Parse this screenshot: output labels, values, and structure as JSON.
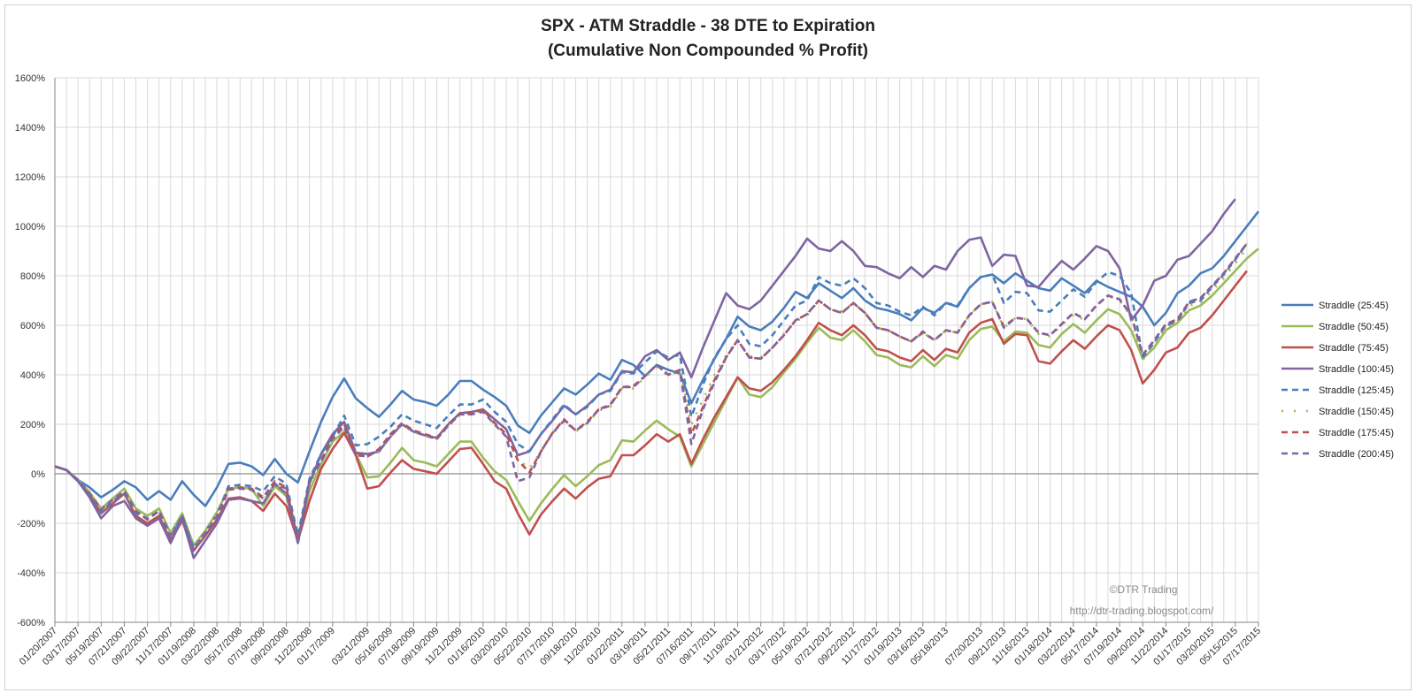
{
  "chart_data": {
    "type": "line",
    "title": "SPX - ATM Straddle - 38 DTE to Expiration",
    "subtitle": "(Cumulative Non Compounded % Profit)",
    "xlabel": "",
    "ylabel": "",
    "ylim": [
      -600,
      1600
    ],
    "y_ticks": [
      "1600%",
      "1400%",
      "1200%",
      "1000%",
      "800%",
      "600%",
      "400%",
      "200%",
      "0%",
      "-200%",
      "-400%",
      "-600%"
    ],
    "y_tick_values": [
      1600,
      1400,
      1200,
      1000,
      800,
      600,
      400,
      200,
      0,
      -200,
      -400,
      -600
    ],
    "x_tick_labels": [
      "01/20/2007",
      "03/17/2007",
      "05/19/2007",
      "07/21/2007",
      "09/22/2007",
      "11/17/2007",
      "01/19/2008",
      "03/22/2008",
      "05/17/2008",
      "07/19/2008",
      "09/20/2008",
      "11/22/2008",
      "01/17/2009",
      "03/21/2009",
      "05/16/2009",
      "07/18/2009",
      "09/19/2009",
      "11/21/2009",
      "01/16/2010",
      "03/20/2010",
      "05/22/2010",
      "07/17/2010",
      "09/18/2010",
      "11/20/2010",
      "01/22/2011",
      "03/19/2011",
      "05/21/2011",
      "07/16/2011",
      "09/17/2011",
      "11/19/2011",
      "01/21/2012",
      "03/17/2012",
      "05/19/2012",
      "07/21/2012",
      "09/22/2012",
      "11/17/2012",
      "01/19/2013",
      "03/16/2013",
      "05/18/2013",
      "07/20/2013",
      "09/21/2013",
      "11/16/2013",
      "01/18/2014",
      "03/22/2014",
      "05/17/2014",
      "07/19/2014",
      "09/20/2014",
      "11/22/2014",
      "01/17/2015",
      "03/20/2015",
      "05/15/2015",
      "07/17/2015"
    ],
    "grid": true,
    "legend_position": "right",
    "annotations": [
      "©DTR Trading",
      "http://dtr-trading.blogspot.com/"
    ],
    "series": [
      {
        "name": "Straddle  (25:45)",
        "color": "#4a7ebb",
        "dash": "solid",
        "values": [
          30,
          15,
          -25,
          -55,
          -95,
          -65,
          -30,
          -55,
          -105,
          -70,
          -105,
          -30,
          -85,
          -130,
          -55,
          40,
          45,
          30,
          -5,
          60,
          0,
          -35,
          90,
          210,
          310,
          385,
          305,
          265,
          230,
          280,
          335,
          300,
          290,
          275,
          320,
          375,
          375,
          340,
          310,
          275,
          195,
          165,
          235,
          290,
          345,
          320,
          360,
          405,
          380,
          460,
          440,
          395,
          440,
          420,
          405,
          285,
          380,
          465,
          545,
          635,
          595,
          580,
          615,
          670,
          735,
          710,
          770,
          740,
          710,
          750,
          700,
          670,
          660,
          645,
          620,
          670,
          650,
          690,
          675,
          750,
          795,
          805,
          770,
          810,
          780,
          750,
          740,
          790,
          760,
          730,
          780,
          755,
          735,
          715,
          675,
          600,
          650,
          730,
          760,
          810,
          830,
          880,
          940,
          1000,
          1060
        ]
      },
      {
        "name": "Straddle  (50:45)",
        "color": "#9bbb59",
        "dash": "solid",
        "values": [
          30,
          15,
          -25,
          -75,
          -140,
          -100,
          -60,
          -140,
          -170,
          -140,
          -240,
          -160,
          -290,
          -230,
          -155,
          -60,
          -55,
          -60,
          -130,
          -50,
          -90,
          -260,
          -70,
          40,
          130,
          170,
          80,
          -15,
          -10,
          45,
          105,
          55,
          45,
          30,
          80,
          130,
          130,
          65,
          10,
          -25,
          -110,
          -190,
          -120,
          -60,
          -5,
          -50,
          -10,
          35,
          55,
          135,
          130,
          175,
          215,
          180,
          150,
          30,
          120,
          210,
          300,
          390,
          320,
          310,
          350,
          410,
          465,
          530,
          590,
          550,
          540,
          580,
          535,
          480,
          470,
          440,
          430,
          475,
          435,
          480,
          465,
          540,
          585,
          595,
          535,
          575,
          570,
          520,
          510,
          565,
          605,
          570,
          620,
          665,
          645,
          580,
          465,
          510,
          580,
          610,
          660,
          680,
          720,
          770,
          820,
          870,
          910
        ]
      },
      {
        "name": "Straddle  (75:45)",
        "color": "#c0504d",
        "dash": "solid",
        "values": [
          30,
          15,
          -30,
          -85,
          -160,
          -120,
          -80,
          -170,
          -200,
          -170,
          -270,
          -190,
          -310,
          -250,
          -185,
          -100,
          -95,
          -110,
          -150,
          -80,
          -130,
          -270,
          -110,
          20,
          100,
          165,
          75,
          -60,
          -50,
          5,
          55,
          20,
          10,
          0,
          50,
          100,
          105,
          40,
          -30,
          -60,
          -160,
          -245,
          -165,
          -110,
          -60,
          -100,
          -55,
          -20,
          -10,
          75,
          75,
          115,
          160,
          130,
          160,
          40,
          140,
          230,
          310,
          390,
          345,
          335,
          370,
          420,
          475,
          540,
          610,
          580,
          560,
          600,
          560,
          505,
          495,
          470,
          455,
          500,
          460,
          505,
          490,
          570,
          610,
          625,
          525,
          565,
          560,
          455,
          445,
          495,
          540,
          505,
          555,
          600,
          580,
          500,
          365,
          420,
          490,
          510,
          570,
          590,
          640,
          700,
          760,
          820
        ]
      },
      {
        "name": "Straddle  (100:45)",
        "color": "#8064a2",
        "dash": "solid",
        "values": [
          30,
          15,
          -30,
          -95,
          -180,
          -130,
          -110,
          -180,
          -210,
          -180,
          -280,
          -180,
          -340,
          -270,
          -200,
          -105,
          -100,
          -110,
          -120,
          -40,
          -80,
          -280,
          -40,
          80,
          160,
          210,
          85,
          80,
          90,
          150,
          200,
          170,
          155,
          145,
          200,
          245,
          250,
          260,
          220,
          180,
          75,
          90,
          160,
          215,
          275,
          240,
          275,
          320,
          340,
          415,
          410,
          475,
          500,
          460,
          490,
          390,
          510,
          620,
          730,
          680,
          665,
          700,
          760,
          820,
          880,
          950,
          910,
          900,
          940,
          900,
          840,
          835,
          810,
          790,
          835,
          795,
          840,
          825,
          900,
          945,
          955,
          840,
          885,
          880,
          760,
          755,
          810,
          860,
          825,
          870,
          920,
          900,
          830,
          620,
          680,
          780,
          800,
          865,
          880,
          930,
          980,
          1050,
          1110
        ]
      },
      {
        "name": "Straddle  (125:45)",
        "color": "#4a7ebb",
        "dash": "dash",
        "values": [
          30,
          15,
          -30,
          -85,
          -155,
          -110,
          -80,
          -160,
          -180,
          -150,
          -250,
          -170,
          -300,
          -235,
          -165,
          -50,
          -45,
          -50,
          -70,
          -10,
          -40,
          -250,
          -20,
          80,
          150,
          235,
          115,
          120,
          150,
          190,
          240,
          215,
          200,
          185,
          235,
          280,
          280,
          300,
          250,
          210,
          120,
          90,
          160,
          220,
          280,
          240,
          270,
          320,
          335,
          410,
          405,
          450,
          495,
          470,
          480,
          230,
          360,
          470,
          545,
          600,
          525,
          515,
          560,
          620,
          680,
          700,
          795,
          770,
          760,
          790,
          750,
          690,
          680,
          655,
          640,
          675,
          640,
          690,
          680,
          750,
          795,
          805,
          690,
          735,
          730,
          660,
          655,
          700,
          745,
          715,
          775,
          815,
          800,
          730,
          470,
          530,
          600,
          615,
          690,
          700,
          755,
          805,
          865,
          930
        ]
      },
      {
        "name": "Straddle  (150:45)",
        "color": "#9bbb59",
        "dash": "dashdot",
        "values": [
          30,
          15,
          -25,
          -75,
          -140,
          -100,
          -65,
          -145,
          -175,
          -140,
          -240,
          -160,
          -290,
          -230,
          -160,
          -60,
          -55,
          -65,
          -110,
          -40,
          -75,
          -255,
          -50,
          50,
          140,
          200,
          85,
          70,
          95,
          150,
          200,
          170,
          155,
          140,
          190,
          240,
          240,
          260,
          200,
          160,
          60,
          20,
          90,
          160,
          215,
          170,
          205,
          255,
          270,
          345,
          345,
          390,
          430,
          395,
          420,
          200,
          300,
          400,
          480,
          540,
          475,
          470,
          510,
          565,
          615,
          640,
          700,
          665,
          655,
          690,
          650,
          590,
          580,
          555,
          535,
          570,
          540,
          580,
          570,
          640,
          685,
          695,
          590,
          630,
          625,
          565,
          555,
          600,
          645,
          620,
          680,
          720,
          700,
          635,
          460,
          520,
          590,
          610,
          680,
          690,
          740,
          790,
          850,
          910
        ]
      },
      {
        "name": "Straddle  (175:45)",
        "color": "#c0504d",
        "dash": "dash",
        "values": [
          30,
          15,
          -25,
          -80,
          -145,
          -105,
          -70,
          -150,
          -185,
          -150,
          -260,
          -170,
          -310,
          -240,
          -175,
          -60,
          -55,
          -60,
          -95,
          -30,
          -55,
          -270,
          -30,
          55,
          150,
          200,
          85,
          70,
          100,
          160,
          205,
          175,
          160,
          145,
          200,
          245,
          245,
          260,
          205,
          160,
          55,
          5,
          90,
          165,
          220,
          175,
          210,
          260,
          275,
          350,
          350,
          395,
          440,
          400,
          420,
          160,
          270,
          380,
          470,
          540,
          470,
          465,
          510,
          560,
          620,
          645,
          700,
          665,
          650,
          690,
          650,
          590,
          580,
          555,
          535,
          570,
          540,
          580,
          570,
          640,
          685,
          695,
          595,
          630,
          625,
          570,
          560,
          605,
          650,
          625,
          680,
          720,
          705,
          640,
          480,
          540,
          605,
          625,
          695,
          710,
          760,
          810,
          870,
          930
        ]
      },
      {
        "name": "Straddle  (200:45)",
        "color": "#8064a2",
        "dash": "dash",
        "values": [
          30,
          15,
          -25,
          -80,
          -145,
          -105,
          -70,
          -150,
          -185,
          -150,
          -260,
          -170,
          -310,
          -240,
          -180,
          -65,
          -60,
          -65,
          -100,
          -40,
          -60,
          -280,
          -30,
          50,
          140,
          190,
          75,
          70,
          95,
          155,
          200,
          170,
          155,
          140,
          195,
          240,
          240,
          250,
          200,
          150,
          -30,
          -15,
          90,
          165,
          215,
          175,
          205,
          260,
          280,
          350,
          355,
          395,
          440,
          400,
          415,
          120,
          260,
          370,
          470,
          540,
          470,
          465,
          510,
          560,
          620,
          645,
          700,
          665,
          650,
          690,
          650,
          590,
          580,
          555,
          535,
          575,
          540,
          580,
          570,
          640,
          685,
          695,
          590,
          630,
          625,
          570,
          560,
          605,
          650,
          625,
          680,
          720,
          705,
          640,
          480,
          540,
          605,
          620,
          695,
          710,
          760,
          810,
          870,
          930
        ]
      }
    ]
  }
}
